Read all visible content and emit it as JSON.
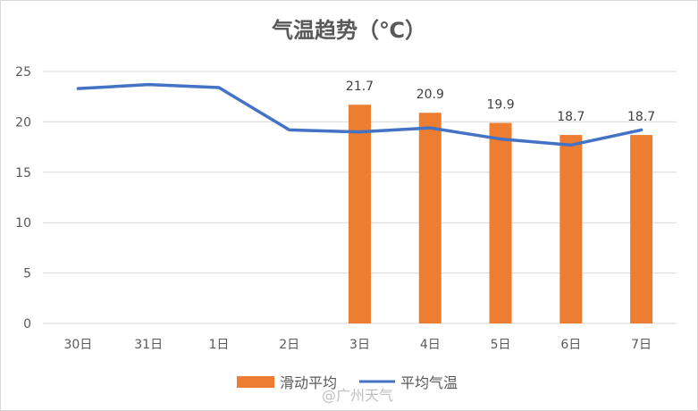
{
  "chart_data": {
    "type": "bar+line",
    "title": "气温趋势（℃）",
    "categories": [
      "30日",
      "31日",
      "1日",
      "2日",
      "3日",
      "4日",
      "5日",
      "6日",
      "7日"
    ],
    "ylim": [
      0,
      25
    ],
    "yticks": [
      0,
      5,
      10,
      15,
      20,
      25
    ],
    "grid": true,
    "legend_position": "bottom",
    "series": [
      {
        "name": "滑动平均",
        "type": "bar",
        "color": "#ed7d31",
        "values": [
          null,
          null,
          null,
          null,
          21.7,
          20.9,
          19.9,
          18.7,
          18.7
        ],
        "labels": [
          null,
          null,
          null,
          null,
          "21.7",
          "20.9",
          "19.9",
          "18.7",
          "18.7"
        ]
      },
      {
        "name": "平均气温",
        "type": "line",
        "color": "#4472c4",
        "values": [
          23.3,
          23.7,
          23.4,
          19.2,
          19.0,
          19.4,
          18.3,
          17.7,
          19.2
        ]
      }
    ]
  },
  "watermark": "@广州天气"
}
